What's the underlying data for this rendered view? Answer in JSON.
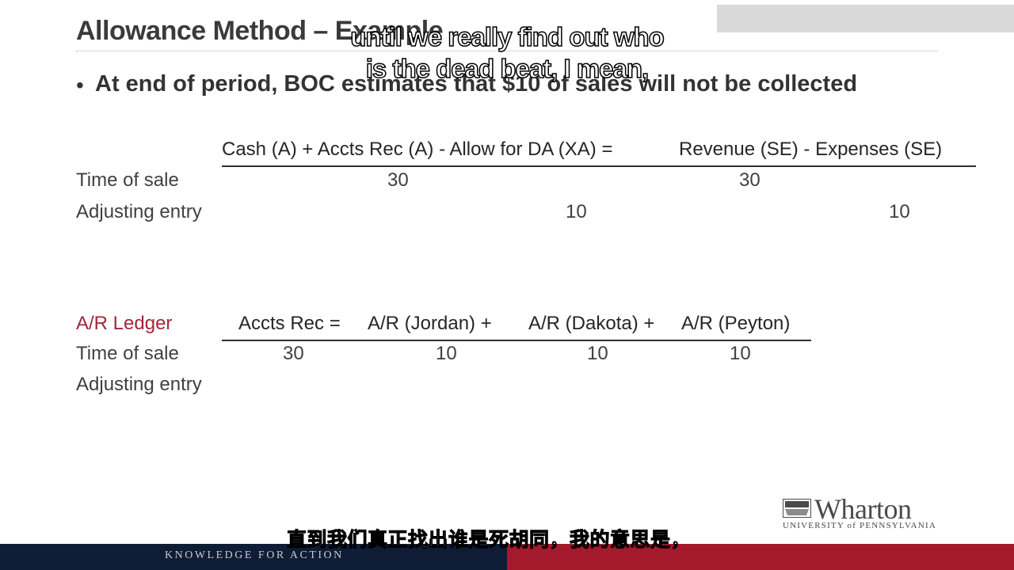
{
  "slide": {
    "title": "Allowance Method – Example",
    "bullet": "At end of period, BOC estimates that $10 of sales will not be collected"
  },
  "equation": {
    "header": "Cash (A) + Accts Rec (A) - Allow for DA (XA) =",
    "header_right": "Revenue (SE) - Expenses (SE)",
    "rows": [
      {
        "label": "Time of sale",
        "cash_ar": "30",
        "allow": "",
        "revenue": "30",
        "expenses": ""
      },
      {
        "label": "Adjusting entry",
        "cash_ar": "",
        "allow": "10",
        "revenue": "",
        "expenses": "10"
      }
    ]
  },
  "ledger": {
    "label": "A/R Ledger",
    "headers": [
      "Accts Rec =",
      "A/R (Jordan) +",
      "A/R (Dakota) +",
      "A/R (Peyton)"
    ],
    "rows": [
      {
        "label": "Time of sale",
        "values": [
          "30",
          "10",
          "10",
          "10"
        ]
      },
      {
        "label": "Adjusting entry",
        "values": [
          "",
          "",
          "",
          ""
        ]
      }
    ]
  },
  "subtitles": {
    "english_line1": "until we really find out who",
    "english_line2": "is the dead beat, I mean,",
    "chinese": "直到我们真正找出谁是死胡同，我的意思是，"
  },
  "logo": {
    "word": "Wharton",
    "sub": "UNIVERSITY of PENNSYLVANIA"
  },
  "footer": {
    "tagline": "KNOWLEDGE FOR ACTION"
  },
  "colors": {
    "accent_red": "#a5192c",
    "footer_navy": "#0f1c36",
    "ledger_label": "#a3283a"
  }
}
